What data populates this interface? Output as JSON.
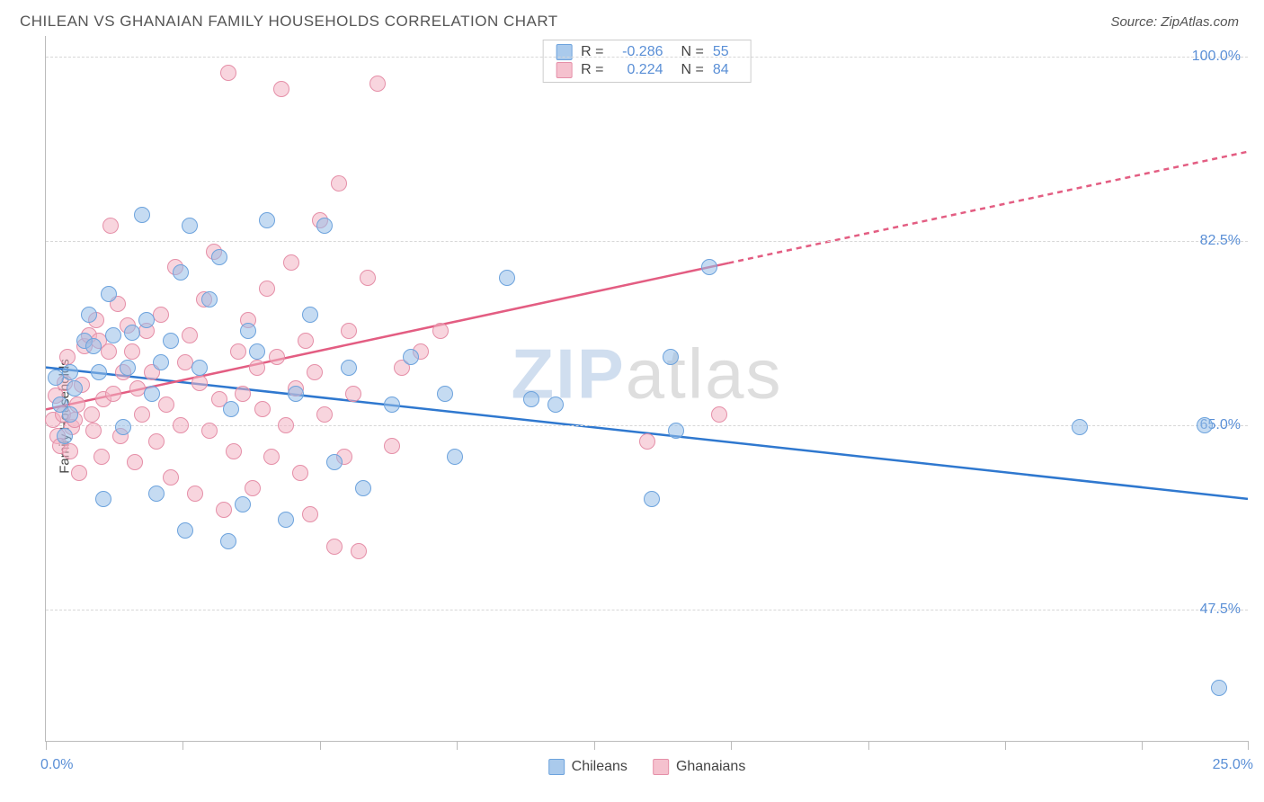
{
  "title": "CHILEAN VS GHANAIAN FAMILY HOUSEHOLDS CORRELATION CHART",
  "source_label": "Source: ZipAtlas.com",
  "watermark_zip": "ZIP",
  "watermark_atlas": "atlas",
  "chart": {
    "type": "scatter",
    "ylabel": "Family Households",
    "xlim": [
      0,
      25
    ],
    "ylim": [
      35,
      102
    ],
    "background_color": "#ffffff",
    "grid_color": "#d7d7d7",
    "axis_color": "#bbbbbb",
    "tick_label_color": "#5a8fd6",
    "tick_label_fontsize": 16,
    "ylabel_fontsize": 15,
    "title_fontsize": 17,
    "y_ticks": [
      {
        "v": 47.5,
        "label": "47.5%"
      },
      {
        "v": 65.0,
        "label": "65.0%"
      },
      {
        "v": 82.5,
        "label": "82.5%"
      },
      {
        "v": 100.0,
        "label": "100.0%"
      }
    ],
    "x_tick_positions": [
      0,
      2.85,
      5.7,
      8.55,
      11.4,
      14.25,
      17.1,
      19.95,
      22.8,
      25.0
    ],
    "x_min_label": "0.0%",
    "x_max_label": "25.0%",
    "legend_top": {
      "border_color": "#cccccc",
      "rows": [
        {
          "swatch": "blue",
          "R_label": "R =",
          "R": "-0.286",
          "N_label": "N =",
          "N": "55"
        },
        {
          "swatch": "pink",
          "R_label": "R =",
          "R": "0.224",
          "N_label": "N =",
          "N": "84"
        }
      ]
    },
    "legend_bottom": [
      {
        "swatch": "blue",
        "label": "Chileans"
      },
      {
        "swatch": "pink",
        "label": "Ghanaians"
      }
    ],
    "series": {
      "blue": {
        "name": "Chileans",
        "marker_color_fill": "#95bde7",
        "marker_color_stroke": "#6da3dd",
        "marker_opacity": 0.55,
        "marker_size": 18,
        "trend": {
          "x1": 0,
          "y1": 70.5,
          "x2": 25,
          "y2": 58.0,
          "color": "#2f78cf",
          "width": 2.5,
          "dash_after_x": 25
        },
        "points": [
          [
            0.2,
            69.5
          ],
          [
            0.3,
            67.0
          ],
          [
            0.4,
            64.0
          ],
          [
            0.5,
            70.0
          ],
          [
            0.5,
            66.0
          ],
          [
            0.6,
            68.5
          ],
          [
            0.8,
            73.0
          ],
          [
            0.9,
            75.5
          ],
          [
            1.0,
            72.5
          ],
          [
            1.1,
            70.0
          ],
          [
            1.2,
            58.0
          ],
          [
            1.3,
            77.5
          ],
          [
            1.4,
            73.5
          ],
          [
            1.6,
            64.8
          ],
          [
            1.7,
            70.5
          ],
          [
            1.8,
            73.8
          ],
          [
            2.0,
            85.0
          ],
          [
            2.1,
            75.0
          ],
          [
            2.2,
            68.0
          ],
          [
            2.3,
            58.5
          ],
          [
            2.4,
            71.0
          ],
          [
            2.6,
            73.0
          ],
          [
            2.8,
            79.5
          ],
          [
            2.9,
            55.0
          ],
          [
            3.0,
            84.0
          ],
          [
            3.2,
            70.5
          ],
          [
            3.4,
            77.0
          ],
          [
            3.6,
            81.0
          ],
          [
            3.8,
            54.0
          ],
          [
            3.85,
            66.5
          ],
          [
            4.1,
            57.5
          ],
          [
            4.2,
            74.0
          ],
          [
            4.4,
            72.0
          ],
          [
            4.6,
            84.5
          ],
          [
            5.0,
            56.0
          ],
          [
            5.2,
            68.0
          ],
          [
            5.5,
            75.5
          ],
          [
            5.8,
            84.0
          ],
          [
            6.0,
            61.5
          ],
          [
            6.3,
            70.5
          ],
          [
            6.6,
            59.0
          ],
          [
            7.2,
            67.0
          ],
          [
            7.6,
            71.5
          ],
          [
            8.3,
            68.0
          ],
          [
            8.5,
            62.0
          ],
          [
            9.6,
            79.0
          ],
          [
            10.1,
            67.5
          ],
          [
            10.6,
            67.0
          ],
          [
            12.6,
            58.0
          ],
          [
            13.0,
            71.5
          ],
          [
            13.1,
            64.5
          ],
          [
            13.8,
            80.0
          ],
          [
            21.5,
            64.8
          ],
          [
            24.1,
            65.0
          ],
          [
            24.4,
            40.0
          ]
        ]
      },
      "pink": {
        "name": "Ghanaians",
        "marker_color_fill": "#f3b2c2",
        "marker_color_stroke": "#e58fa8",
        "marker_opacity": 0.55,
        "marker_size": 18,
        "trend": {
          "x1": 0,
          "y1": 66.5,
          "x2": 25,
          "y2": 91.0,
          "color": "#e35d82",
          "width": 2.5,
          "dash_after_x": 14.2
        },
        "points": [
          [
            0.15,
            65.5
          ],
          [
            0.2,
            67.8
          ],
          [
            0.25,
            64.0
          ],
          [
            0.3,
            63.0
          ],
          [
            0.35,
            66.0
          ],
          [
            0.4,
            69.0
          ],
          [
            0.45,
            71.5
          ],
          [
            0.5,
            62.5
          ],
          [
            0.55,
            64.8
          ],
          [
            0.6,
            65.5
          ],
          [
            0.65,
            67.0
          ],
          [
            0.7,
            60.5
          ],
          [
            0.75,
            68.8
          ],
          [
            0.8,
            72.5
          ],
          [
            0.9,
            73.5
          ],
          [
            0.95,
            66.0
          ],
          [
            1.0,
            64.5
          ],
          [
            1.05,
            75.0
          ],
          [
            1.1,
            73.0
          ],
          [
            1.15,
            62.0
          ],
          [
            1.2,
            67.5
          ],
          [
            1.3,
            72.0
          ],
          [
            1.35,
            84.0
          ],
          [
            1.4,
            68.0
          ],
          [
            1.5,
            76.5
          ],
          [
            1.55,
            64.0
          ],
          [
            1.6,
            70.0
          ],
          [
            1.7,
            74.5
          ],
          [
            1.8,
            72.0
          ],
          [
            1.85,
            61.5
          ],
          [
            1.9,
            68.5
          ],
          [
            2.0,
            66.0
          ],
          [
            2.1,
            74.0
          ],
          [
            2.2,
            70.0
          ],
          [
            2.3,
            63.5
          ],
          [
            2.4,
            75.5
          ],
          [
            2.5,
            67.0
          ],
          [
            2.6,
            60.0
          ],
          [
            2.7,
            80.0
          ],
          [
            2.8,
            65.0
          ],
          [
            2.9,
            71.0
          ],
          [
            3.0,
            73.5
          ],
          [
            3.1,
            58.5
          ],
          [
            3.2,
            69.0
          ],
          [
            3.3,
            77.0
          ],
          [
            3.4,
            64.5
          ],
          [
            3.5,
            81.5
          ],
          [
            3.6,
            67.5
          ],
          [
            3.7,
            57.0
          ],
          [
            3.8,
            98.5
          ],
          [
            3.9,
            62.5
          ],
          [
            4.0,
            72.0
          ],
          [
            4.1,
            68.0
          ],
          [
            4.2,
            75.0
          ],
          [
            4.3,
            59.0
          ],
          [
            4.4,
            70.5
          ],
          [
            4.5,
            66.5
          ],
          [
            4.6,
            78.0
          ],
          [
            4.7,
            62.0
          ],
          [
            4.8,
            71.5
          ],
          [
            4.9,
            97.0
          ],
          [
            5.0,
            65.0
          ],
          [
            5.1,
            80.5
          ],
          [
            5.2,
            68.5
          ],
          [
            5.3,
            60.5
          ],
          [
            5.4,
            73.0
          ],
          [
            5.5,
            56.5
          ],
          [
            5.6,
            70.0
          ],
          [
            5.7,
            84.5
          ],
          [
            5.8,
            66.0
          ],
          [
            6.0,
            53.5
          ],
          [
            6.1,
            88.0
          ],
          [
            6.2,
            62.0
          ],
          [
            6.3,
            74.0
          ],
          [
            6.4,
            68.0
          ],
          [
            6.5,
            53.0
          ],
          [
            6.7,
            79.0
          ],
          [
            6.9,
            97.5
          ],
          [
            7.2,
            63.0
          ],
          [
            7.4,
            70.5
          ],
          [
            7.8,
            72.0
          ],
          [
            8.2,
            74.0
          ],
          [
            12.5,
            63.5
          ],
          [
            14.0,
            66.0
          ]
        ]
      }
    }
  }
}
